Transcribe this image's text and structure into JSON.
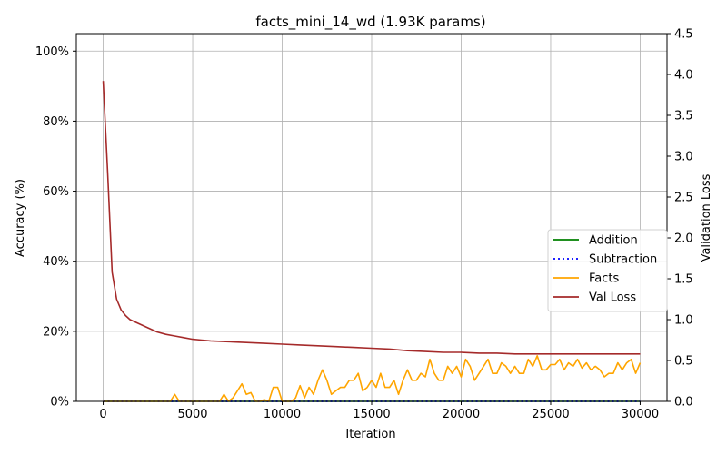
{
  "chart_data": {
    "type": "line",
    "title": "facts_mini_14_wd (1.93K params)",
    "xlabel": "Iteration",
    "ylabel": "Accuracy (%)",
    "y2label": "Validation Loss",
    "xlim": [
      -1500,
      31500
    ],
    "ylim": [
      0,
      105
    ],
    "y2lim": [
      0,
      4.5
    ],
    "xticks": [
      0,
      5000,
      10000,
      15000,
      20000,
      25000,
      30000
    ],
    "yticks": [
      0,
      20,
      40,
      60,
      80,
      100
    ],
    "ytick_labels": [
      "0%",
      "20%",
      "40%",
      "60%",
      "80%",
      "100%"
    ],
    "y2ticks": [
      0,
      0.5,
      1.0,
      1.5,
      2.0,
      2.5,
      3.0,
      3.5,
      4.0,
      4.5
    ],
    "y2tick_labels": [
      "0.0",
      "0.5",
      "1.0",
      "1.5",
      "2.0",
      "2.5",
      "3.0",
      "3.5",
      "4.0",
      "4.5"
    ],
    "grid": true,
    "legend_position": "center-right",
    "series": [
      {
        "name": "Addition",
        "color": "#008000",
        "style": "solid",
        "axis": "left",
        "x": [
          0,
          30000
        ],
        "values": [
          0,
          0
        ]
      },
      {
        "name": "Subtraction",
        "color": "#0000ff",
        "style": "dotted",
        "axis": "left",
        "x": [
          0,
          30000
        ],
        "values": [
          0,
          0
        ]
      },
      {
        "name": "Facts",
        "color": "#ffa500",
        "style": "solid",
        "axis": "left",
        "x": [
          0,
          500,
          1000,
          1500,
          2000,
          2500,
          3000,
          3500,
          3750,
          4000,
          4250,
          4500,
          5000,
          5500,
          6000,
          6500,
          6750,
          7000,
          7250,
          7500,
          7750,
          8000,
          8250,
          8500,
          8750,
          9000,
          9250,
          9500,
          9750,
          10000,
          10250,
          10500,
          10750,
          11000,
          11250,
          11500,
          11750,
          12000,
          12250,
          12500,
          12750,
          13000,
          13250,
          13500,
          13750,
          14000,
          14250,
          14500,
          14750,
          15000,
          15250,
          15500,
          15750,
          16000,
          16250,
          16500,
          16750,
          17000,
          17250,
          17500,
          17750,
          18000,
          18250,
          18500,
          18750,
          19000,
          19250,
          19500,
          19750,
          20000,
          20250,
          20500,
          20750,
          21000,
          21250,
          21500,
          21750,
          22000,
          22250,
          22500,
          22750,
          23000,
          23250,
          23500,
          23750,
          24000,
          24250,
          24500,
          24750,
          25000,
          25250,
          25500,
          25750,
          26000,
          26250,
          26500,
          26750,
          27000,
          27250,
          27500,
          27750,
          28000,
          28250,
          28500,
          28750,
          29000,
          29250,
          29500,
          29750,
          30000
        ],
        "values": [
          0,
          0,
          0,
          0,
          0,
          0,
          0,
          0,
          0,
          2,
          0,
          0,
          0,
          0,
          0,
          0,
          2,
          0,
          1,
          3,
          5,
          2,
          2.5,
          0,
          0,
          0.5,
          0,
          4,
          4,
          0,
          0,
          0,
          1,
          4.5,
          1,
          4,
          2,
          6,
          9,
          6,
          2,
          3,
          4,
          4,
          6,
          6,
          8,
          3,
          4,
          6,
          4,
          8,
          4,
          4,
          6,
          2,
          6,
          9,
          6,
          6,
          8,
          7,
          12,
          8,
          6,
          6,
          10,
          8,
          10,
          7,
          12,
          10,
          6,
          8,
          10,
          12,
          8,
          8,
          11,
          10,
          8,
          10,
          8,
          8,
          12,
          10,
          13,
          9,
          9,
          10.5,
          10.5,
          12,
          9,
          11,
          10,
          12,
          9.5,
          11,
          9,
          10,
          9,
          7,
          8,
          8,
          11,
          9,
          11,
          12,
          8,
          11
        ]
      },
      {
        "name": "Val Loss",
        "color": "#a52a2a",
        "style": "solid",
        "axis": "right",
        "x": [
          0,
          250,
          500,
          750,
          1000,
          1250,
          1500,
          2000,
          2500,
          3000,
          3500,
          4000,
          4500,
          5000,
          5500,
          6000,
          7000,
          8000,
          9000,
          10000,
          11000,
          12000,
          13000,
          14000,
          15000,
          16000,
          17000,
          18000,
          19000,
          20000,
          21000,
          22000,
          23000,
          24000,
          25000,
          26000,
          27000,
          28000,
          29000,
          30000
        ],
        "values": [
          3.92,
          2.8,
          1.58,
          1.25,
          1.12,
          1.05,
          1.0,
          0.95,
          0.9,
          0.85,
          0.82,
          0.8,
          0.78,
          0.76,
          0.75,
          0.74,
          0.73,
          0.72,
          0.71,
          0.7,
          0.69,
          0.68,
          0.67,
          0.66,
          0.65,
          0.64,
          0.62,
          0.61,
          0.6,
          0.6,
          0.59,
          0.59,
          0.58,
          0.58,
          0.58,
          0.58,
          0.58,
          0.58,
          0.58,
          0.58
        ]
      }
    ]
  }
}
